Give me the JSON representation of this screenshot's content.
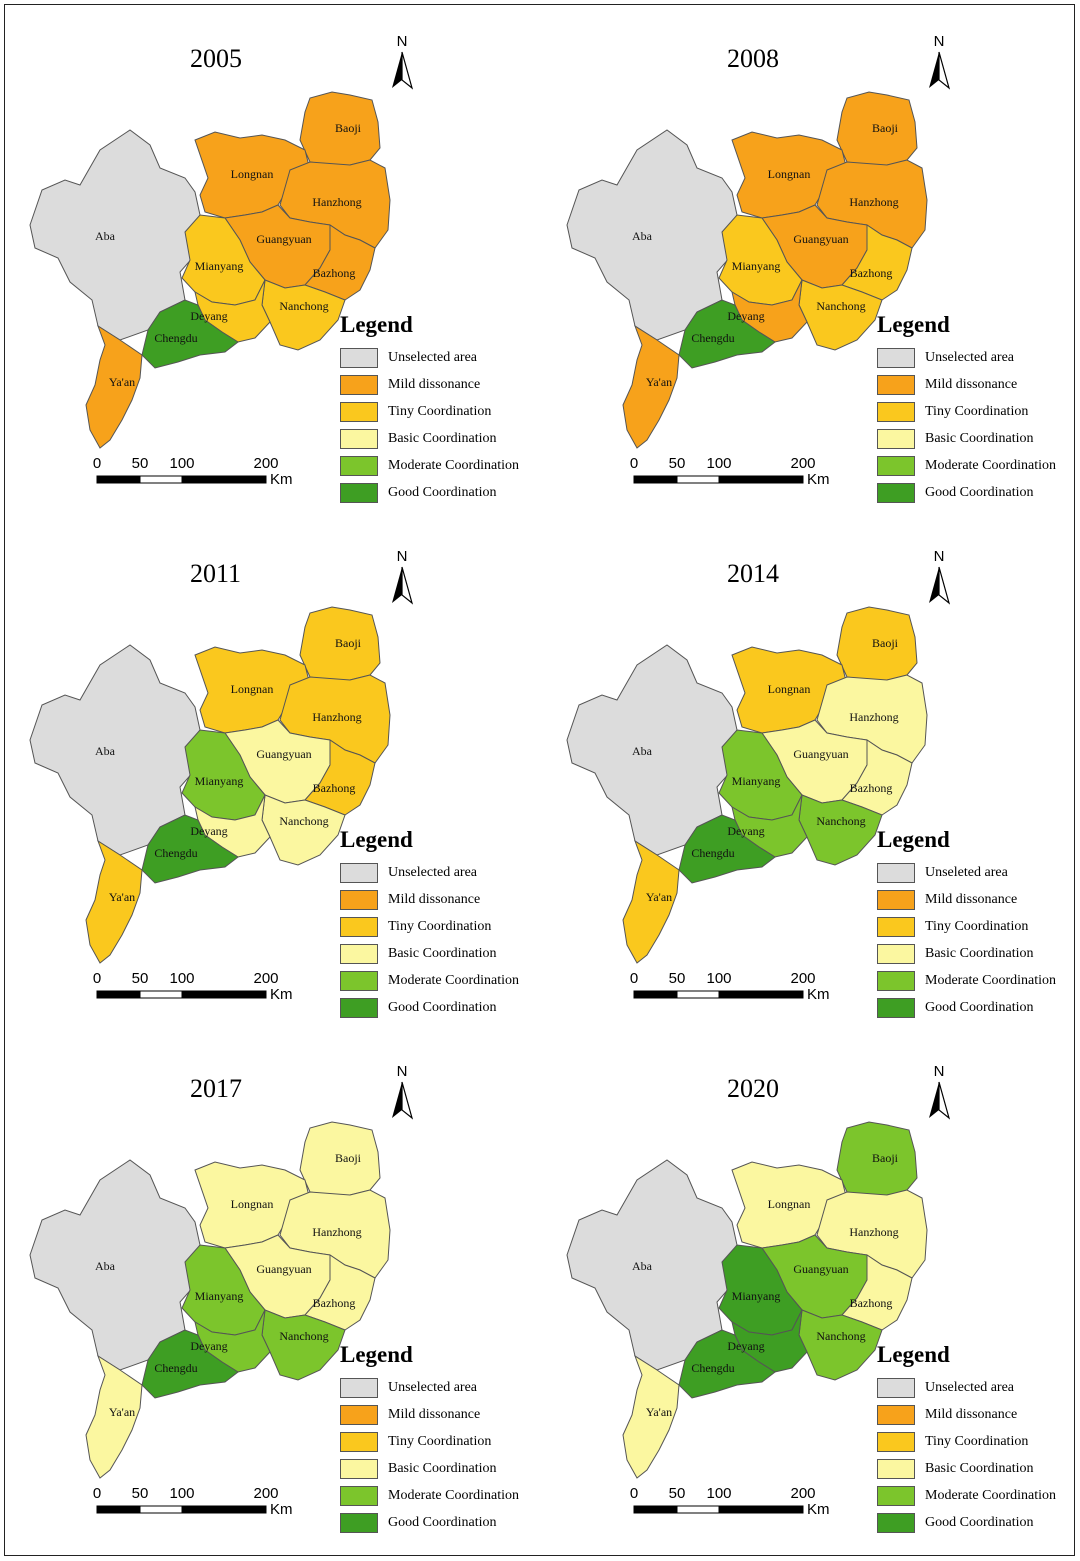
{
  "legend": {
    "title": "Legend",
    "categories": [
      {
        "key": "unselected",
        "label": "Unselected area",
        "color": "#dcdcdc"
      },
      {
        "key": "mild",
        "label": "Mild dissonance",
        "color": "#f7a21b"
      },
      {
        "key": "tiny",
        "label": "Tiny Coordination",
        "color": "#fac81e"
      },
      {
        "key": "basic",
        "label": "Basic Coordination",
        "color": "#fbf7a0"
      },
      {
        "key": "moderate",
        "label": "Moderate Coordination",
        "color": "#7cc52c"
      },
      {
        "key": "good",
        "label": "Good Coordination",
        "color": "#3e9e23"
      }
    ]
  },
  "scale_bar": {
    "ticks": [
      "0",
      "50",
      "100",
      "200"
    ],
    "unit": "Km"
  },
  "north_label": "N",
  "regions": [
    "Aba",
    "Baoji",
    "Longnan",
    "Hanzhong",
    "Guangyuan",
    "Mianyang",
    "Bazhong",
    "Nanchong",
    "Deyang",
    "Chengdu",
    "Ya'an"
  ],
  "maps": [
    {
      "year": "2005",
      "legend_unselected_label": "Unselected area",
      "colors": {
        "Aba": "unselected",
        "Baoji": "mild",
        "Longnan": "mild",
        "Hanzhong": "mild",
        "Guangyuan": "mild",
        "Mianyang": "tiny",
        "Bazhong": "mild",
        "Nanchong": "tiny",
        "Deyang": "tiny",
        "Chengdu": "good",
        "Ya'an": "mild"
      }
    },
    {
      "year": "2008",
      "legend_unselected_label": "Unselected area",
      "colors": {
        "Aba": "unselected",
        "Baoji": "mild",
        "Longnan": "mild",
        "Hanzhong": "mild",
        "Guangyuan": "mild",
        "Mianyang": "tiny",
        "Bazhong": "tiny",
        "Nanchong": "tiny",
        "Deyang": "mild",
        "Chengdu": "good",
        "Ya'an": "mild"
      }
    },
    {
      "year": "2011",
      "legend_unselected_label": "Unselected area",
      "colors": {
        "Aba": "unselected",
        "Baoji": "tiny",
        "Longnan": "tiny",
        "Hanzhong": "tiny",
        "Guangyuan": "basic",
        "Mianyang": "moderate",
        "Bazhong": "tiny",
        "Nanchong": "basic",
        "Deyang": "basic",
        "Chengdu": "good",
        "Ya'an": "tiny"
      }
    },
    {
      "year": "2014",
      "legend_unselected_label": "Unseleted area",
      "colors": {
        "Aba": "unselected",
        "Baoji": "tiny",
        "Longnan": "tiny",
        "Hanzhong": "basic",
        "Guangyuan": "basic",
        "Mianyang": "moderate",
        "Bazhong": "basic",
        "Nanchong": "moderate",
        "Deyang": "moderate",
        "Chengdu": "good",
        "Ya'an": "tiny"
      }
    },
    {
      "year": "2017",
      "legend_unselected_label": "Unselected area",
      "colors": {
        "Aba": "unselected",
        "Baoji": "basic",
        "Longnan": "basic",
        "Hanzhong": "basic",
        "Guangyuan": "basic",
        "Mianyang": "moderate",
        "Bazhong": "basic",
        "Nanchong": "moderate",
        "Deyang": "moderate",
        "Chengdu": "good",
        "Ya'an": "basic"
      }
    },
    {
      "year": "2020",
      "legend_unselected_label": "Unselected area",
      "colors": {
        "Aba": "unselected",
        "Baoji": "moderate",
        "Longnan": "basic",
        "Hanzhong": "basic",
        "Guangyuan": "moderate",
        "Mianyang": "good",
        "Bazhong": "basic",
        "Nanchong": "moderate",
        "Deyang": "good",
        "Chengdu": "good",
        "Ya'an": "basic"
      }
    }
  ]
}
